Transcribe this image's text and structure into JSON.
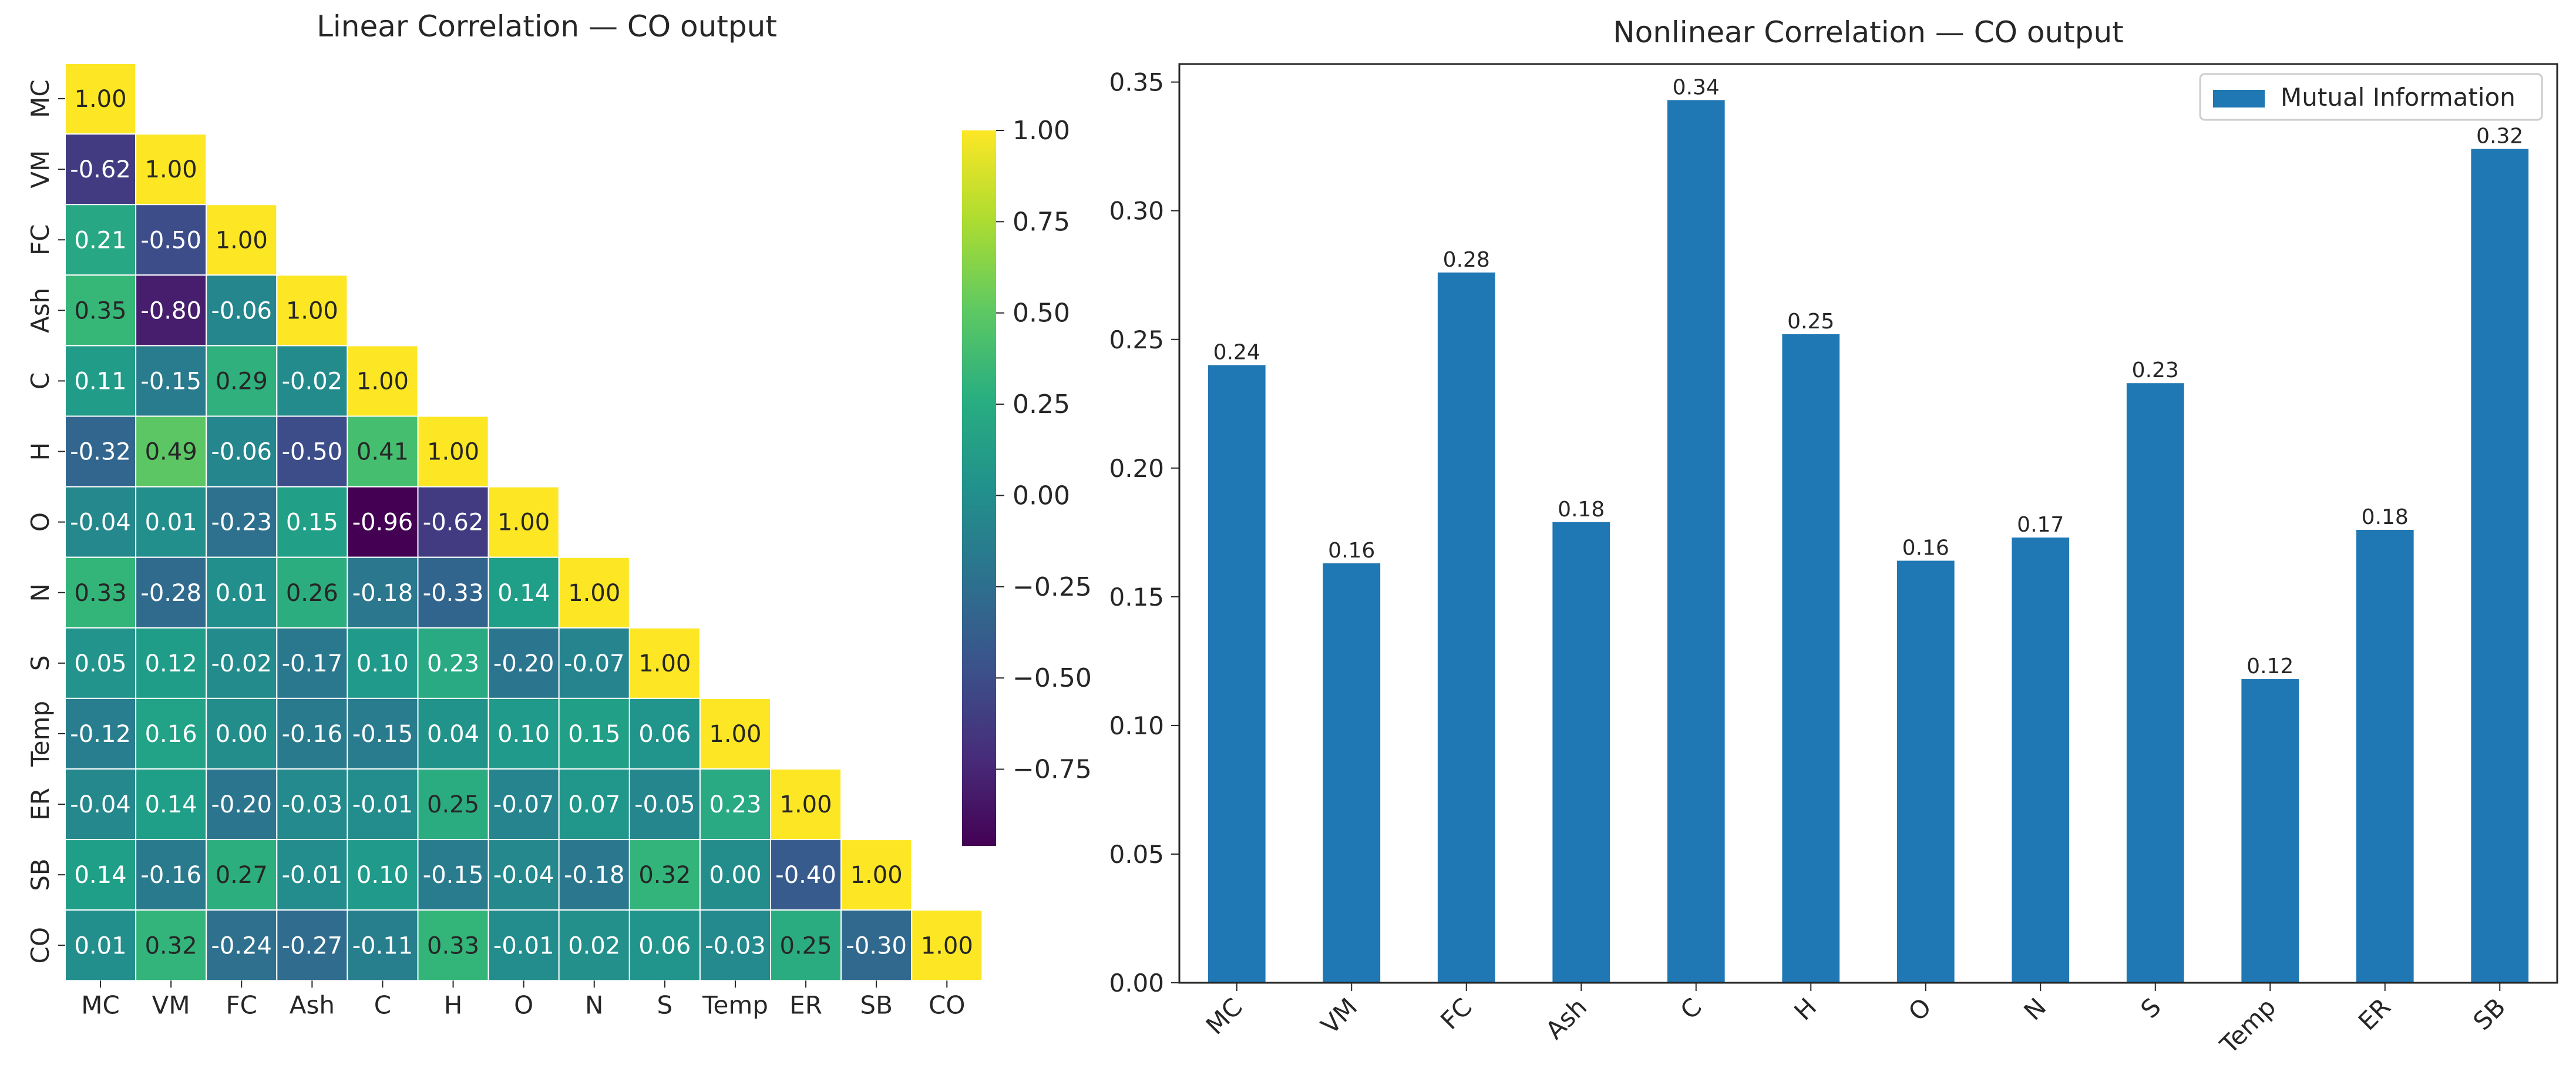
{
  "chart_data": [
    {
      "type": "heatmap",
      "title": "Linear Correlation — CO output",
      "variables": [
        "MC",
        "VM",
        "FC",
        "Ash",
        "C",
        "H",
        "O",
        "N",
        "S",
        "Temp",
        "ER",
        "SB",
        "CO"
      ],
      "mask": "upper-triangle",
      "matrix": [
        [
          1.0
        ],
        [
          -0.62,
          1.0
        ],
        [
          0.21,
          -0.5,
          1.0
        ],
        [
          0.35,
          -0.8,
          -0.06,
          1.0
        ],
        [
          0.11,
          -0.15,
          0.29,
          -0.02,
          1.0
        ],
        [
          -0.32,
          0.49,
          -0.06,
          -0.5,
          0.41,
          1.0
        ],
        [
          -0.04,
          0.01,
          -0.23,
          0.15,
          -0.96,
          -0.62,
          1.0
        ],
        [
          0.33,
          -0.28,
          0.01,
          0.26,
          -0.18,
          -0.33,
          0.14,
          1.0
        ],
        [
          0.05,
          0.12,
          -0.02,
          -0.17,
          0.1,
          0.23,
          -0.2,
          -0.07,
          1.0
        ],
        [
          -0.12,
          0.16,
          0.0,
          -0.16,
          -0.15,
          0.04,
          0.1,
          0.15,
          0.06,
          1.0
        ],
        [
          -0.04,
          0.14,
          -0.2,
          -0.03,
          -0.01,
          0.25,
          -0.07,
          0.07,
          -0.05,
          0.23,
          1.0
        ],
        [
          0.14,
          -0.16,
          0.27,
          -0.01,
          0.1,
          -0.15,
          -0.04,
          -0.18,
          0.32,
          0.0,
          -0.4,
          1.0
        ],
        [
          0.01,
          0.32,
          -0.24,
          -0.27,
          -0.11,
          0.33,
          -0.01,
          0.02,
          0.06,
          -0.03,
          0.25,
          -0.3,
          1.0
        ]
      ],
      "colormap": "viridis",
      "vmin": -0.96,
      "vmax": 1.0,
      "colorbar_ticks": [
        "1.00",
        "0.75",
        "0.50",
        "0.25",
        "0.00",
        "−0.25",
        "−0.50",
        "−0.75"
      ],
      "colorbar_tick_values": [
        1.0,
        0.75,
        0.5,
        0.25,
        0.0,
        -0.25,
        -0.5,
        -0.75
      ]
    },
    {
      "type": "bar",
      "title": "Nonlinear Correlation — CO output",
      "categories": [
        "MC",
        "VM",
        "FC",
        "Ash",
        "C",
        "H",
        "O",
        "N",
        "S",
        "Temp",
        "ER",
        "SB"
      ],
      "values": [
        0.24,
        0.163,
        0.276,
        0.179,
        0.343,
        0.252,
        0.164,
        0.173,
        0.233,
        0.118,
        0.176,
        0.324
      ],
      "value_labels": [
        "0.24",
        "0.16",
        "0.28",
        "0.18",
        "0.34",
        "0.25",
        "0.16",
        "0.17",
        "0.23",
        "0.12",
        "0.18",
        "0.32"
      ],
      "legend": "Mutual Information",
      "legend_position": "top-right",
      "ylim": [
        0,
        0.357
      ],
      "yticks": [
        "0.00",
        "0.05",
        "0.10",
        "0.15",
        "0.20",
        "0.25",
        "0.30",
        "0.35"
      ],
      "ytick_values": [
        0,
        0.05,
        0.1,
        0.15,
        0.2,
        0.25,
        0.3,
        0.35
      ],
      "color": "#1f77b4",
      "xlabel": "",
      "ylabel": ""
    }
  ]
}
